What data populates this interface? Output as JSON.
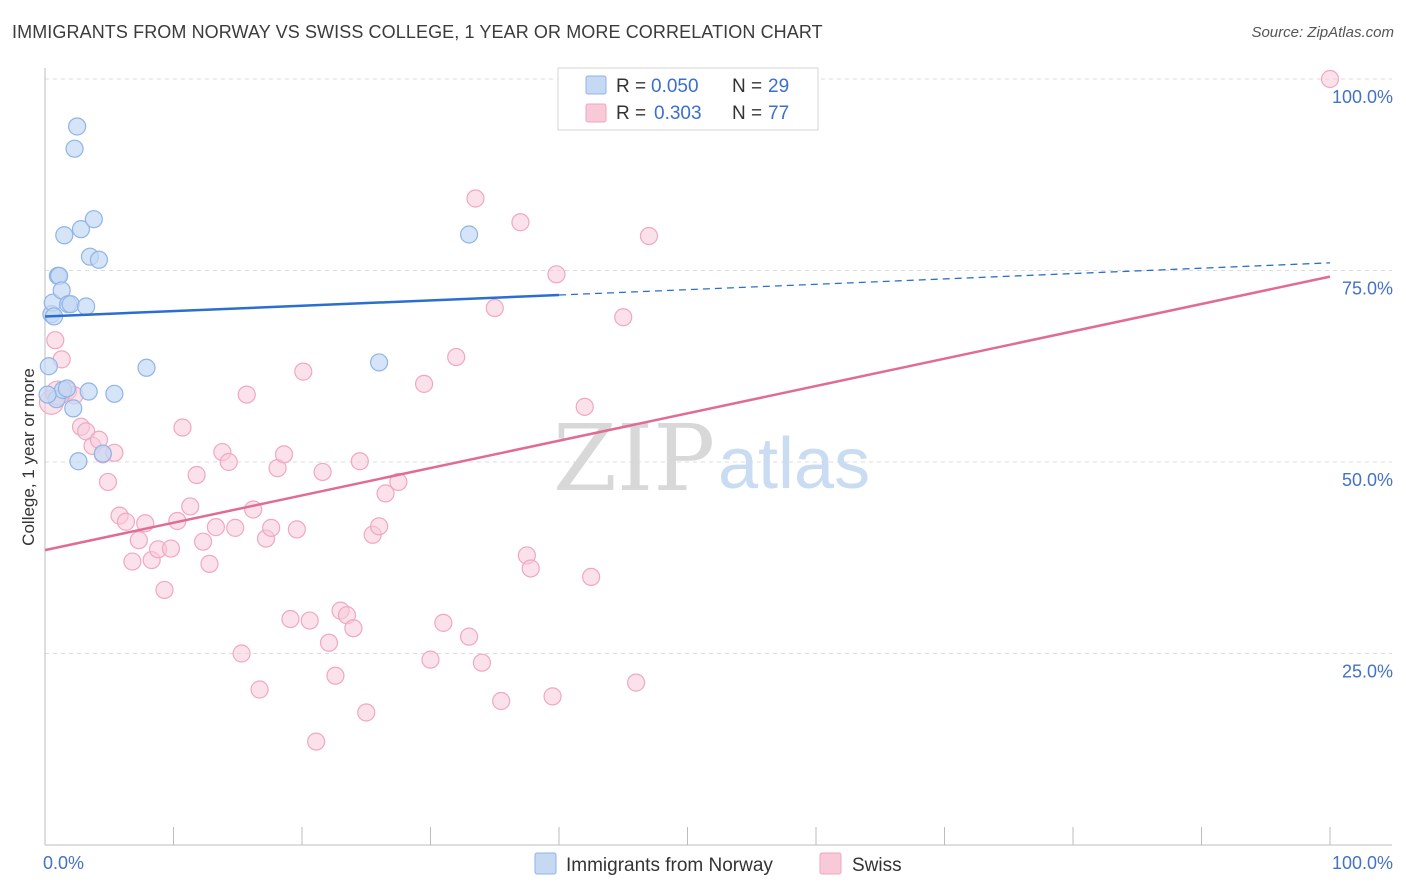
{
  "title": "IMMIGRANTS FROM NORWAY VS SWISS COLLEGE, 1 YEAR OR MORE CORRELATION CHART",
  "source": "Source: ZipAtlas.com",
  "watermark": {
    "zip": "ZIP",
    "atlas": "atlas"
  },
  "chart_data": {
    "type": "scatter",
    "title": "IMMIGRANTS FROM NORWAY VS SWISS COLLEGE, 1 YEAR OR MORE CORRELATION CHART",
    "xlabel": "",
    "ylabel": "College, 1 year or more",
    "xlim": [
      0,
      100
    ],
    "ylim": [
      0,
      100
    ],
    "x_tick_labels": [
      "0.0%",
      "100.0%"
    ],
    "y_tick_labels": [
      {
        "value": 100,
        "label": "100.0%"
      },
      {
        "value": 75,
        "label": "75.0%"
      },
      {
        "value": 50,
        "label": "50.0%"
      },
      {
        "value": 25,
        "label": "25.0%"
      }
    ],
    "grid": true,
    "legend": {
      "placement": "top-center",
      "entries": [
        {
          "r_label": "R =",
          "r_value": "0.050",
          "n_label": "N =",
          "n_value": "29"
        },
        {
          "r_label": "R =",
          "r_value": "0.303",
          "n_label": "N =",
          "n_value": "77"
        }
      ]
    },
    "series": [
      {
        "name": "Immigrants from Norway",
        "color": "#8fb4e8",
        "fill": "#c5d9f3",
        "trend_color": "#2a6fcf",
        "trend": {
          "x0": 0,
          "y0": 69.0,
          "x1": 40,
          "y1": 71.8,
          "dashed_to_x": 100,
          "dashed_y_end": 76.0
        },
        "points": [
          [
            0.3,
            62.5
          ],
          [
            0.5,
            69.3
          ],
          [
            0.6,
            70.8
          ],
          [
            0.7,
            69.0
          ],
          [
            0.9,
            58.2
          ],
          [
            1.0,
            74.3
          ],
          [
            1.1,
            74.3
          ],
          [
            1.3,
            72.4
          ],
          [
            1.4,
            59.4
          ],
          [
            1.5,
            79.6
          ],
          [
            1.7,
            59.6
          ],
          [
            1.8,
            70.6
          ],
          [
            2.0,
            70.6
          ],
          [
            2.2,
            57.0
          ],
          [
            2.3,
            90.9
          ],
          [
            2.5,
            93.8
          ],
          [
            2.6,
            50.1
          ],
          [
            2.8,
            80.4
          ],
          [
            3.2,
            70.3
          ],
          [
            3.4,
            59.2
          ],
          [
            3.5,
            76.8
          ],
          [
            3.8,
            81.7
          ],
          [
            4.2,
            76.4
          ],
          [
            4.5,
            51.1
          ],
          [
            5.4,
            58.9
          ],
          [
            7.9,
            62.3
          ],
          [
            26.0,
            63.0
          ],
          [
            33.0,
            79.7
          ],
          [
            0.2,
            58.8
          ]
        ]
      },
      {
        "name": "Swiss",
        "color": "#f1a7bf",
        "fill": "#f8cad8",
        "trend_color": "#e06c96",
        "trend": {
          "x0": 0,
          "y0": 38.5,
          "x1": 100,
          "y1": 74.2
        },
        "points": [
          [
            0.5,
            57.8
          ],
          [
            0.8,
            65.9
          ],
          [
            1.3,
            63.4
          ],
          [
            1.8,
            59.3
          ],
          [
            2.3,
            58.7
          ],
          [
            2.8,
            54.6
          ],
          [
            3.2,
            54.0
          ],
          [
            3.7,
            52.1
          ],
          [
            4.2,
            52.9
          ],
          [
            4.5,
            51.0
          ],
          [
            4.9,
            47.4
          ],
          [
            5.4,
            51.2
          ],
          [
            5.8,
            43.0
          ],
          [
            6.3,
            42.2
          ],
          [
            6.8,
            37.0
          ],
          [
            7.3,
            39.8
          ],
          [
            7.8,
            42.0
          ],
          [
            8.3,
            37.2
          ],
          [
            8.8,
            38.6
          ],
          [
            9.3,
            33.3
          ],
          [
            9.8,
            38.7
          ],
          [
            10.3,
            42.3
          ],
          [
            10.7,
            54.5
          ],
          [
            11.3,
            44.2
          ],
          [
            11.8,
            48.3
          ],
          [
            12.3,
            39.6
          ],
          [
            12.8,
            36.7
          ],
          [
            13.3,
            41.5
          ],
          [
            13.8,
            51.3
          ],
          [
            14.3,
            50.0
          ],
          [
            14.8,
            41.4
          ],
          [
            15.3,
            25.0
          ],
          [
            15.7,
            58.8
          ],
          [
            16.2,
            43.8
          ],
          [
            16.7,
            20.3
          ],
          [
            17.2,
            40.0
          ],
          [
            17.6,
            41.4
          ],
          [
            18.1,
            49.2
          ],
          [
            18.6,
            51.0
          ],
          [
            19.1,
            29.5
          ],
          [
            19.6,
            41.2
          ],
          [
            20.1,
            61.8
          ],
          [
            20.6,
            29.3
          ],
          [
            21.1,
            13.5
          ],
          [
            21.6,
            48.7
          ],
          [
            22.1,
            26.4
          ],
          [
            22.6,
            22.1
          ],
          [
            23.0,
            30.6
          ],
          [
            23.5,
            30.0
          ],
          [
            24.0,
            28.3
          ],
          [
            24.5,
            50.1
          ],
          [
            25.0,
            17.3
          ],
          [
            25.5,
            40.5
          ],
          [
            26.0,
            41.6
          ],
          [
            26.5,
            45.9
          ],
          [
            27.5,
            47.4
          ],
          [
            29.5,
            60.2
          ],
          [
            30.0,
            24.2
          ],
          [
            31.0,
            29.0
          ],
          [
            32.0,
            63.7
          ],
          [
            33.0,
            27.2
          ],
          [
            33.5,
            84.4
          ],
          [
            34.0,
            23.8
          ],
          [
            35.0,
            70.1
          ],
          [
            35.5,
            18.8
          ],
          [
            37.0,
            81.3
          ],
          [
            37.5,
            37.8
          ],
          [
            37.8,
            36.1
          ],
          [
            39.5,
            19.4
          ],
          [
            39.8,
            74.5
          ],
          [
            42.0,
            57.2
          ],
          [
            42.5,
            35.0
          ],
          [
            45.0,
            68.9
          ],
          [
            46.0,
            21.2
          ],
          [
            47.0,
            79.5
          ],
          [
            100.0,
            100.0
          ],
          [
            1.0,
            59.0
          ]
        ]
      }
    ]
  }
}
